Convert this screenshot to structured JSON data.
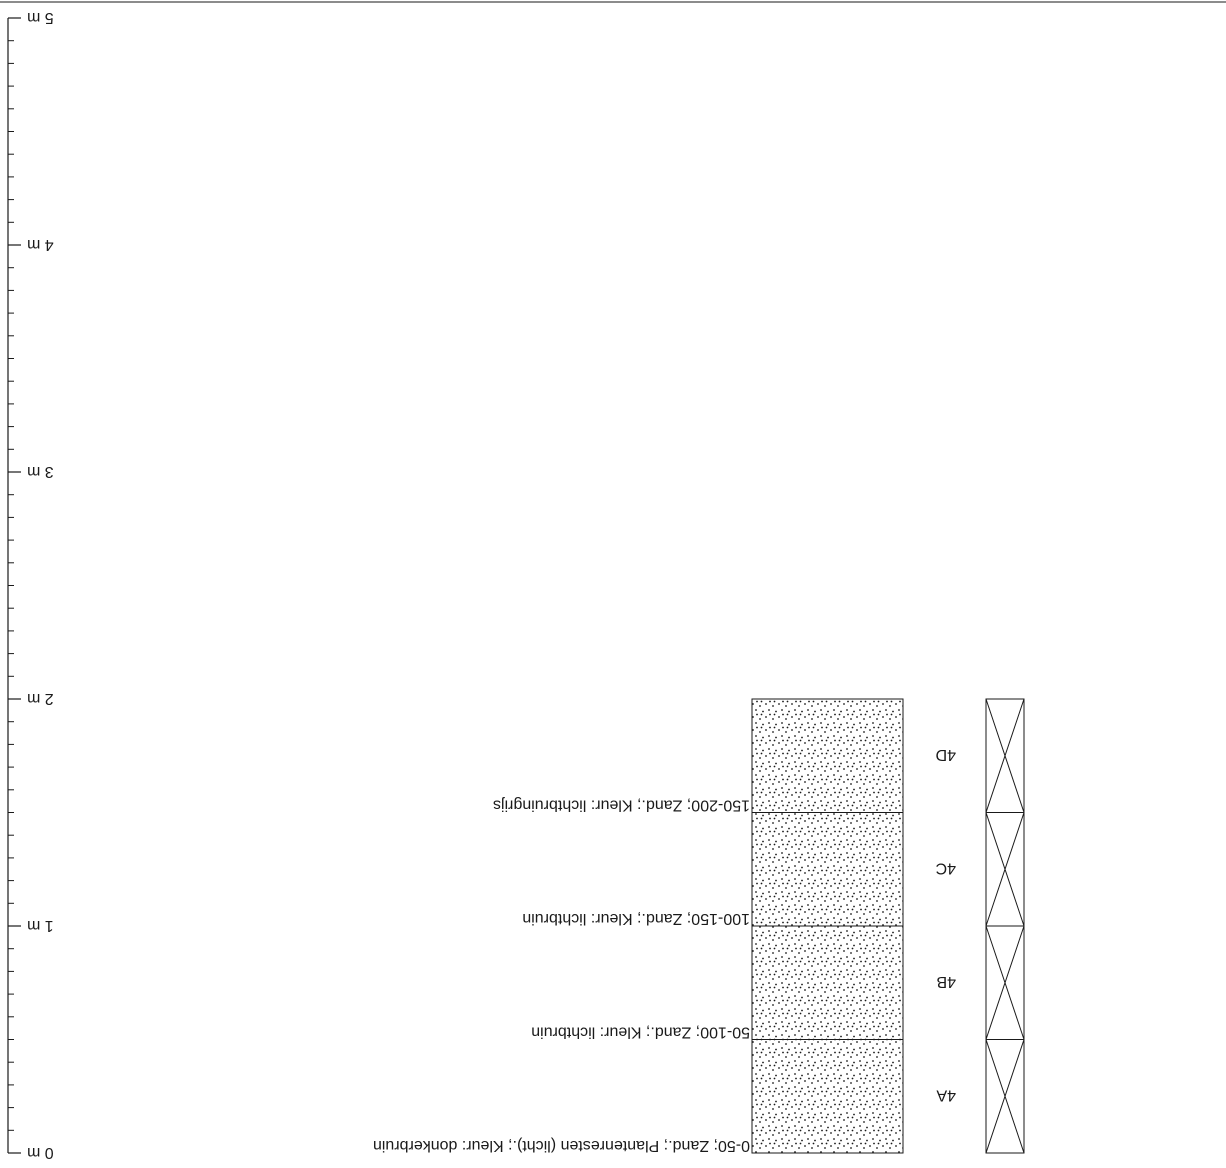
{
  "axis": {
    "unit": "m",
    "max_m": 5,
    "major_labels": [
      "0 m",
      "1 m",
      "2 m",
      "3 m",
      "4 m",
      "5 m"
    ]
  },
  "layers": [
    {
      "code": "4A",
      "top_cm": 0,
      "bottom_cm": 50,
      "description": "0-50; Zand.; Plantenresten (licht).; Kleur: donkerbruin"
    },
    {
      "code": "4B",
      "top_cm": 50,
      "bottom_cm": 100,
      "description": "50-100; Zand.; Kleur: lichtbruin"
    },
    {
      "code": "4C",
      "top_cm": 100,
      "bottom_cm": 150,
      "description": "100-150; Zand.; Kleur: lichtbruin"
    },
    {
      "code": "4D",
      "top_cm": 150,
      "bottom_cm": 200,
      "description": "150-200; Zand.; Kleur: lichtbruingrijs"
    }
  ],
  "lithology": "Zand",
  "colors": {
    "line": "#1a1a1a",
    "background": "#ffffff"
  }
}
